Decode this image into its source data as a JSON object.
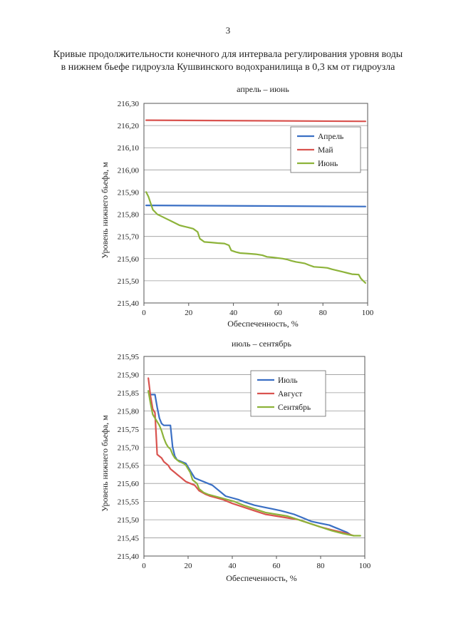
{
  "page": {
    "number": "3",
    "title_line1": "Кривые продолжительности конечного для интервала регулирования уровня воды",
    "title_line2": "в нижнем бьефе гидроузла Кушвинского водохранилища в 0,3 км от гидроузла"
  },
  "chart_data": [
    {
      "type": "line",
      "title": "апрель – июнь",
      "xlabel": "Обеспеченность, %",
      "ylabel": "Уровень нижнего бьефа, м",
      "xlim": [
        0,
        100
      ],
      "ylim": [
        215.4,
        216.3
      ],
      "xticks": [
        "0",
        "20",
        "40",
        "60",
        "80",
        "100"
      ],
      "yticks": [
        "215,40",
        "215,50",
        "215,60",
        "215,70",
        "215,80",
        "215,90",
        "216,00",
        "216,10",
        "216,20",
        "216,30"
      ],
      "grid": "horizontal",
      "legend_position": "top-right",
      "series": [
        {
          "name": "Апрель",
          "color": "#3a6fc4",
          "x": [
            1,
            99
          ],
          "y": [
            215.84,
            215.835
          ]
        },
        {
          "name": "Май",
          "color": "#d9534f",
          "x": [
            1,
            99
          ],
          "y": [
            216.224,
            216.219
          ]
        },
        {
          "name": "Июнь",
          "color": "#8db33a",
          "x": [
            1,
            2,
            3,
            4,
            5,
            6,
            8,
            10,
            12,
            14,
            16,
            18,
            20,
            22,
            24,
            25,
            27,
            30,
            33,
            36,
            38,
            39,
            41,
            43,
            46,
            50,
            53,
            55,
            58,
            62,
            64,
            66,
            68,
            70,
            72,
            74,
            76,
            80,
            82,
            84,
            87,
            89,
            91,
            93,
            96,
            97,
            98,
            99
          ],
          "y": [
            215.9,
            215.88,
            215.85,
            215.82,
            215.81,
            215.8,
            215.79,
            215.78,
            215.77,
            215.76,
            215.75,
            215.745,
            215.74,
            215.735,
            215.72,
            215.69,
            215.675,
            215.673,
            215.67,
            215.668,
            215.66,
            215.637,
            215.63,
            215.625,
            215.623,
            215.62,
            215.615,
            215.608,
            215.605,
            215.6,
            215.596,
            215.59,
            215.585,
            215.582,
            215.578,
            215.57,
            215.563,
            215.56,
            215.558,
            215.552,
            215.545,
            215.54,
            215.535,
            215.53,
            215.528,
            215.51,
            215.5,
            215.49
          ]
        }
      ]
    },
    {
      "type": "line",
      "title": "июль – сентябрь",
      "xlabel": "Обеспеченность, %",
      "ylabel": "Уровень нижнего бьефа, м",
      "xlim": [
        0,
        100
      ],
      "ylim": [
        215.4,
        215.95
      ],
      "xticks": [
        "0",
        "20",
        "40",
        "60",
        "80",
        "100"
      ],
      "yticks": [
        "215,40",
        "215,45",
        "215,50",
        "215,55",
        "215,60",
        "215,65",
        "215,70",
        "215,75",
        "215,80",
        "215,85",
        "215,90",
        "215,95"
      ],
      "grid": "horizontal",
      "legend_position": "top-right",
      "series": [
        {
          "name": "Июль",
          "color": "#3a6fc4",
          "x": [
            2,
            3,
            5,
            6,
            7,
            8,
            9,
            12,
            13,
            14,
            15,
            17,
            19,
            21,
            23,
            25,
            27,
            29,
            31,
            33,
            35,
            37,
            40,
            43,
            46,
            50,
            54,
            58,
            62,
            65,
            68,
            70,
            72,
            74,
            76,
            80,
            84,
            86,
            88,
            90,
            92,
            94
          ],
          "y": [
            215.855,
            215.845,
            215.845,
            215.81,
            215.78,
            215.765,
            215.76,
            215.76,
            215.7,
            215.675,
            215.665,
            215.66,
            215.655,
            215.635,
            215.615,
            215.61,
            215.605,
            215.6,
            215.595,
            215.585,
            215.575,
            215.565,
            215.56,
            215.555,
            215.548,
            215.54,
            215.535,
            215.53,
            215.525,
            215.52,
            215.515,
            215.51,
            215.505,
            215.5,
            215.495,
            215.49,
            215.485,
            215.48,
            215.475,
            215.47,
            215.465,
            215.457
          ]
        },
        {
          "name": "Август",
          "color": "#d9534f",
          "x": [
            2,
            3,
            4,
            5,
            6,
            8,
            9,
            10,
            11,
            12,
            13,
            14,
            15,
            16,
            17,
            18,
            19,
            21,
            23,
            25,
            28,
            30,
            33,
            36,
            40,
            45,
            50,
            55,
            60,
            65,
            70,
            75,
            80,
            85,
            90,
            93,
            95
          ],
          "y": [
            215.89,
            215.84,
            215.805,
            215.795,
            215.68,
            215.67,
            215.66,
            215.655,
            215.65,
            215.64,
            215.635,
            215.63,
            215.625,
            215.62,
            215.615,
            215.61,
            215.605,
            215.6,
            215.595,
            215.58,
            215.57,
            215.565,
            215.56,
            215.555,
            215.545,
            215.535,
            215.525,
            215.515,
            215.51,
            215.505,
            215.5,
            215.49,
            215.48,
            215.472,
            215.465,
            215.46,
            215.456
          ]
        },
        {
          "name": "Сентябрь",
          "color": "#8db33a",
          "x": [
            2,
            3,
            4,
            5,
            6,
            7,
            8,
            9,
            10,
            11,
            12,
            13,
            14,
            15,
            16,
            17,
            18,
            19,
            20,
            21,
            22,
            23,
            24,
            25,
            27,
            29,
            32,
            35,
            38,
            41,
            45,
            50,
            55,
            60,
            65,
            70,
            75,
            80,
            85,
            90,
            95,
            98
          ],
          "y": [
            215.855,
            215.82,
            215.79,
            215.78,
            215.77,
            215.76,
            215.745,
            215.725,
            215.71,
            215.7,
            215.695,
            215.68,
            215.67,
            215.665,
            215.66,
            215.658,
            215.655,
            215.65,
            215.64,
            215.63,
            215.61,
            215.605,
            215.6,
            215.585,
            215.575,
            215.57,
            215.565,
            215.56,
            215.555,
            215.55,
            215.54,
            215.53,
            215.52,
            215.515,
            215.51,
            215.5,
            215.49,
            215.48,
            215.47,
            215.462,
            215.456,
            215.456
          ]
        }
      ]
    }
  ]
}
